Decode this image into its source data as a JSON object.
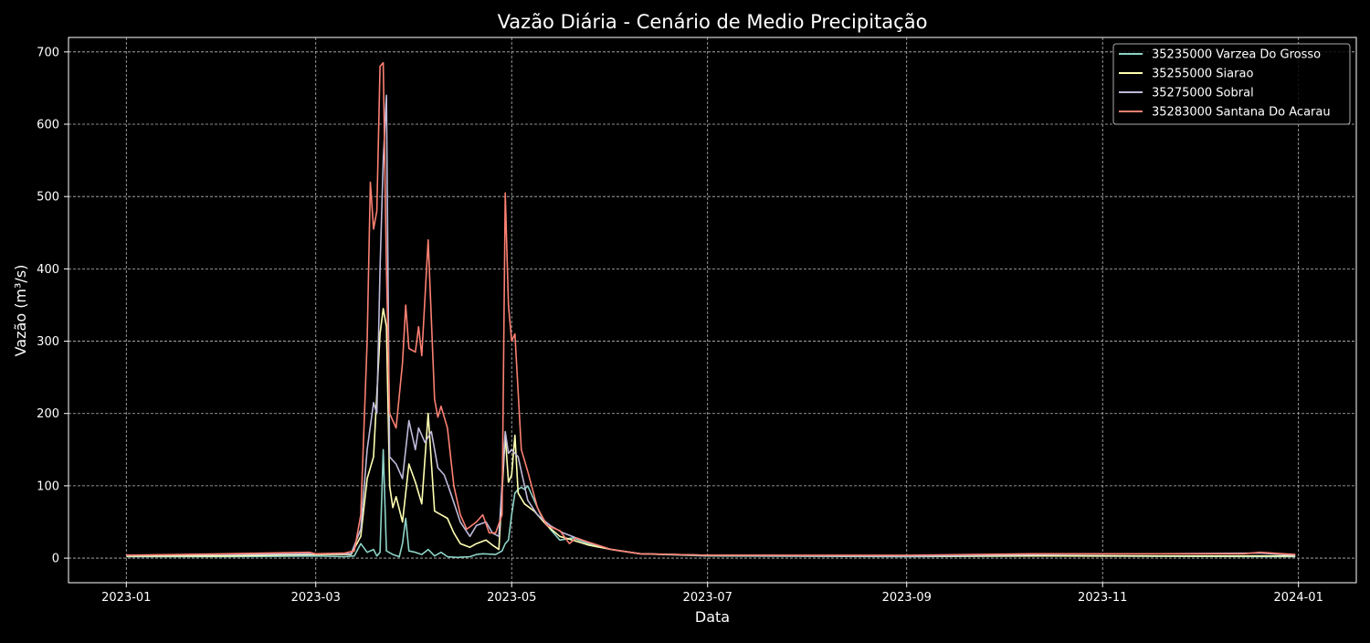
{
  "chart_data": {
    "type": "line",
    "title": "Vazão Diária - Cenário de Medio Precipitação",
    "xlabel": "Data",
    "ylabel": "Vazão (m³/s)",
    "x_type": "date",
    "xlim": [
      "2022-12-14",
      "2024-01-19"
    ],
    "ylim": [
      -34,
      720
    ],
    "x_ticks": [
      "2023-01-01",
      "2023-03-01",
      "2023-05-01",
      "2023-07-01",
      "2023-09-01",
      "2023-11-01",
      "2024-01-01"
    ],
    "x_tick_labels": [
      "2023-01",
      "2023-03",
      "2023-05",
      "2023-07",
      "2023-09",
      "2023-11",
      "2024-01"
    ],
    "y_ticks": [
      0,
      100,
      200,
      300,
      400,
      500,
      600,
      700
    ],
    "grid": true,
    "legend_position": "top-right",
    "background": "#000000",
    "text_color": "#ffffff",
    "series": [
      {
        "name": "35235000 Varzea Do Grosso",
        "color": "#8dd3c7",
        "points": [
          [
            "2023-01-01",
            2
          ],
          [
            "2023-02-01",
            2
          ],
          [
            "2023-03-01",
            3
          ],
          [
            "2023-03-10",
            2
          ],
          [
            "2023-03-13",
            3
          ],
          [
            "2023-03-15",
            20
          ],
          [
            "2023-03-17",
            8
          ],
          [
            "2023-03-19",
            12
          ],
          [
            "2023-03-20",
            3
          ],
          [
            "2023-03-21",
            8
          ],
          [
            "2023-03-22",
            150
          ],
          [
            "2023-03-23",
            10
          ],
          [
            "2023-03-25",
            5
          ],
          [
            "2023-03-27",
            2
          ],
          [
            "2023-03-28",
            20
          ],
          [
            "2023-03-29",
            55
          ],
          [
            "2023-03-30",
            10
          ],
          [
            "2023-04-01",
            8
          ],
          [
            "2023-04-03",
            5
          ],
          [
            "2023-04-05",
            12
          ],
          [
            "2023-04-07",
            3
          ],
          [
            "2023-04-09",
            8
          ],
          [
            "2023-04-11",
            2
          ],
          [
            "2023-04-14",
            1
          ],
          [
            "2023-04-18",
            2
          ],
          [
            "2023-04-20",
            5
          ],
          [
            "2023-04-22",
            6
          ],
          [
            "2023-04-26",
            5
          ],
          [
            "2023-04-28",
            10
          ],
          [
            "2023-04-29",
            20
          ],
          [
            "2023-04-30",
            25
          ],
          [
            "2023-05-01",
            60
          ],
          [
            "2023-05-02",
            90
          ],
          [
            "2023-05-03",
            95
          ],
          [
            "2023-05-04",
            98
          ],
          [
            "2023-05-05",
            95
          ],
          [
            "2023-05-06",
            100
          ],
          [
            "2023-05-08",
            80
          ],
          [
            "2023-05-10",
            60
          ],
          [
            "2023-05-13",
            40
          ],
          [
            "2023-05-16",
            25
          ],
          [
            "2023-05-20",
            28
          ],
          [
            "2023-05-25",
            20
          ],
          [
            "2023-06-01",
            12
          ],
          [
            "2023-06-10",
            6
          ],
          [
            "2023-07-01",
            3
          ],
          [
            "2023-09-01",
            2
          ],
          [
            "2023-10-15",
            3
          ],
          [
            "2023-12-31",
            2
          ]
        ]
      },
      {
        "name": "35255000 Siarao",
        "color": "#ffffb3",
        "points": [
          [
            "2023-01-01",
            3
          ],
          [
            "2023-02-01",
            3
          ],
          [
            "2023-03-01",
            5
          ],
          [
            "2023-03-12",
            5
          ],
          [
            "2023-03-15",
            30
          ],
          [
            "2023-03-17",
            110
          ],
          [
            "2023-03-19",
            140
          ],
          [
            "2023-03-21",
            310
          ],
          [
            "2023-03-22",
            345
          ],
          [
            "2023-03-23",
            320
          ],
          [
            "2023-03-24",
            100
          ],
          [
            "2023-03-25",
            70
          ],
          [
            "2023-03-26",
            85
          ],
          [
            "2023-03-28",
            50
          ],
          [
            "2023-03-30",
            130
          ],
          [
            "2023-04-01",
            105
          ],
          [
            "2023-04-03",
            75
          ],
          [
            "2023-04-05",
            200
          ],
          [
            "2023-04-07",
            65
          ],
          [
            "2023-04-09",
            60
          ],
          [
            "2023-04-11",
            55
          ],
          [
            "2023-04-13",
            35
          ],
          [
            "2023-04-15",
            20
          ],
          [
            "2023-04-18",
            15
          ],
          [
            "2023-04-20",
            20
          ],
          [
            "2023-04-23",
            25
          ],
          [
            "2023-04-25",
            18
          ],
          [
            "2023-04-27",
            12
          ],
          [
            "2023-04-29",
            170
          ],
          [
            "2023-04-30",
            105
          ],
          [
            "2023-05-01",
            115
          ],
          [
            "2023-05-02",
            170
          ],
          [
            "2023-05-03",
            90
          ],
          [
            "2023-05-05",
            75
          ],
          [
            "2023-05-08",
            65
          ],
          [
            "2023-05-12",
            45
          ],
          [
            "2023-05-16",
            30
          ],
          [
            "2023-05-20",
            25
          ],
          [
            "2023-05-25",
            18
          ],
          [
            "2023-06-01",
            12
          ],
          [
            "2023-06-10",
            6
          ],
          [
            "2023-07-01",
            4
          ],
          [
            "2023-09-01",
            3
          ],
          [
            "2023-12-31",
            3
          ]
        ]
      },
      {
        "name": "35275000 Sobral",
        "color": "#bebada",
        "points": [
          [
            "2023-01-01",
            4
          ],
          [
            "2023-02-01",
            5
          ],
          [
            "2023-03-01",
            6
          ],
          [
            "2023-03-12",
            6
          ],
          [
            "2023-03-15",
            40
          ],
          [
            "2023-03-17",
            150
          ],
          [
            "2023-03-19",
            215
          ],
          [
            "2023-03-20",
            200
          ],
          [
            "2023-03-21",
            400
          ],
          [
            "2023-03-22",
            550
          ],
          [
            "2023-03-23",
            640
          ],
          [
            "2023-03-24",
            140
          ],
          [
            "2023-03-26",
            130
          ],
          [
            "2023-03-28",
            110
          ],
          [
            "2023-03-30",
            190
          ],
          [
            "2023-04-01",
            150
          ],
          [
            "2023-04-02",
            180
          ],
          [
            "2023-04-04",
            160
          ],
          [
            "2023-04-06",
            175
          ],
          [
            "2023-04-08",
            125
          ],
          [
            "2023-04-10",
            115
          ],
          [
            "2023-04-12",
            90
          ],
          [
            "2023-04-15",
            50
          ],
          [
            "2023-04-18",
            30
          ],
          [
            "2023-04-20",
            45
          ],
          [
            "2023-04-23",
            50
          ],
          [
            "2023-04-25",
            35
          ],
          [
            "2023-04-27",
            30
          ],
          [
            "2023-04-29",
            175
          ],
          [
            "2023-04-30",
            145
          ],
          [
            "2023-05-01",
            150
          ],
          [
            "2023-05-03",
            140
          ],
          [
            "2023-05-06",
            80
          ],
          [
            "2023-05-09",
            60
          ],
          [
            "2023-05-13",
            45
          ],
          [
            "2023-05-17",
            35
          ],
          [
            "2023-05-21",
            28
          ],
          [
            "2023-05-25",
            22
          ],
          [
            "2023-06-01",
            12
          ],
          [
            "2023-06-10",
            6
          ],
          [
            "2023-07-01",
            4
          ],
          [
            "2023-09-01",
            3
          ],
          [
            "2023-10-15",
            5
          ],
          [
            "2023-12-20",
            7
          ],
          [
            "2023-12-31",
            4
          ]
        ]
      },
      {
        "name": "35283000 Santana Do Acarau",
        "color": "#fb8072",
        "points": [
          [
            "2023-01-01",
            4
          ],
          [
            "2023-02-01",
            6
          ],
          [
            "2023-02-27",
            8
          ],
          [
            "2023-03-01",
            6
          ],
          [
            "2023-03-10",
            7
          ],
          [
            "2023-03-13",
            10
          ],
          [
            "2023-03-15",
            60
          ],
          [
            "2023-03-17",
            300
          ],
          [
            "2023-03-18",
            520
          ],
          [
            "2023-03-19",
            455
          ],
          [
            "2023-03-20",
            480
          ],
          [
            "2023-03-21",
            680
          ],
          [
            "2023-03-22",
            685
          ],
          [
            "2023-03-23",
            400
          ],
          [
            "2023-03-24",
            200
          ],
          [
            "2023-03-26",
            180
          ],
          [
            "2023-03-28",
            270
          ],
          [
            "2023-03-29",
            350
          ],
          [
            "2023-03-30",
            290
          ],
          [
            "2023-04-01",
            285
          ],
          [
            "2023-04-02",
            320
          ],
          [
            "2023-04-03",
            280
          ],
          [
            "2023-04-05",
            440
          ],
          [
            "2023-04-07",
            220
          ],
          [
            "2023-04-08",
            195
          ],
          [
            "2023-04-09",
            210
          ],
          [
            "2023-04-11",
            180
          ],
          [
            "2023-04-13",
            100
          ],
          [
            "2023-04-15",
            60
          ],
          [
            "2023-04-17",
            40
          ],
          [
            "2023-04-20",
            50
          ],
          [
            "2023-04-22",
            60
          ],
          [
            "2023-04-24",
            35
          ],
          [
            "2023-04-26",
            35
          ],
          [
            "2023-04-28",
            60
          ],
          [
            "2023-04-29",
            505
          ],
          [
            "2023-04-30",
            350
          ],
          [
            "2023-05-01",
            300
          ],
          [
            "2023-05-02",
            310
          ],
          [
            "2023-05-04",
            150
          ],
          [
            "2023-05-06",
            120
          ],
          [
            "2023-05-09",
            70
          ],
          [
            "2023-05-12",
            45
          ],
          [
            "2023-05-16",
            38
          ],
          [
            "2023-05-19",
            20
          ],
          [
            "2023-05-21",
            28
          ],
          [
            "2023-05-25",
            22
          ],
          [
            "2023-06-01",
            12
          ],
          [
            "2023-06-10",
            6
          ],
          [
            "2023-07-01",
            4
          ],
          [
            "2023-09-01",
            4
          ],
          [
            "2023-10-10",
            6
          ],
          [
            "2023-12-15",
            6
          ],
          [
            "2023-12-20",
            8
          ],
          [
            "2023-12-31",
            5
          ]
        ]
      }
    ]
  }
}
